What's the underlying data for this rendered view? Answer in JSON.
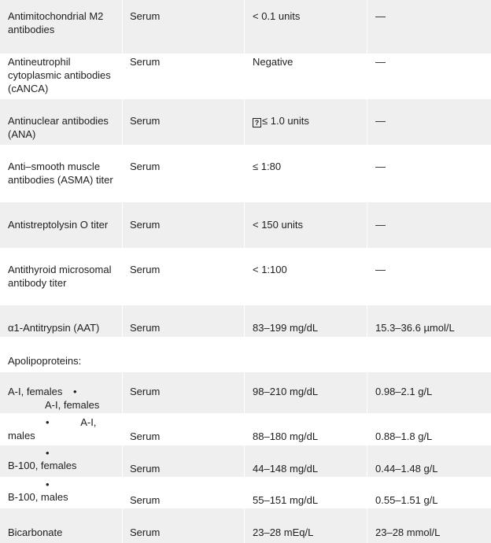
{
  "rows": [
    {
      "test": "Antimitochondrial M2 antibodies",
      "specimen": "Serum",
      "conventional": "< 0.1 units",
      "si": "—"
    },
    {
      "test": "Antineutrophil cytoplasmic antibodies (cANCA)",
      "specimen": "Serum",
      "conventional": "Negative",
      "si": "—"
    },
    {
      "test": "Antinuclear antibodies (ANA)",
      "specimen": "Serum",
      "conventional_icon": "?",
      "conventional": "≤ 1.0 units",
      "si": "—"
    },
    {
      "test": "Anti–smooth muscle antibodies (ASMA) titer",
      "specimen": "Serum",
      "conventional": "≤ 1:80",
      "si": "—"
    },
    {
      "test": "Antistreptolysin O titer",
      "specimen": "Serum",
      "conventional": "< 150 units",
      "si": "—"
    },
    {
      "test": "Antithyroid microsomal antibody titer",
      "specimen": "Serum",
      "conventional": "< 1:100",
      "si": "—"
    },
    {
      "test": "α1-Antitrypsin (AAT)",
      "specimen": "Serum",
      "conventional": "83–199 mg/dL",
      "si": "15.3–36.6 µmol/L"
    },
    {
      "test": "Apolipoproteins:",
      "specimen": "",
      "conventional": "",
      "si": ""
    },
    {
      "test_line1": "A-I, females",
      "bullet": "•",
      "test_line2": "A-I, females",
      "specimen": "Serum",
      "conventional": "98–210 mg/dL",
      "si": "0.98–2.1 g/L"
    },
    {
      "bullet": "•",
      "test_line1": "A-I,",
      "test_line2": "males",
      "specimen": "Serum",
      "conventional": "88–180 mg/dL",
      "si": "0.88–1.8 g/L"
    },
    {
      "bullet": "•",
      "test": "B-100, females",
      "specimen": "Serum",
      "conventional": "44–148 mg/dL",
      "si": "0.44–1.48 g/L"
    },
    {
      "bullet": "•",
      "test": "B-100, males",
      "specimen": "Serum",
      "conventional": "55–151 mg/dL",
      "si": "0.55–1.51 g/L"
    },
    {
      "test": "Bicarbonate",
      "specimen": "Serum",
      "conventional": "23–28 mEq/L",
      "si": "23–28 mmol/L"
    }
  ]
}
